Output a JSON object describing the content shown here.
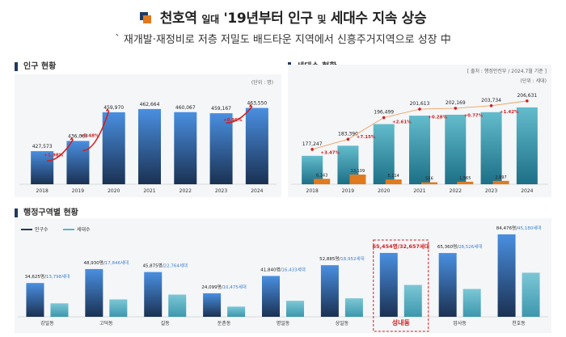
{
  "header": {
    "title_main": "천호역",
    "title_small1": "일대",
    "title_mid": "'19년부터 인구",
    "title_small2": "및",
    "title_end": "세대수 지속 상승",
    "subtitle": "` 재개발·재정비로 저층 저밀도 배드타운 지역에서 신흥주거지역으로 성장 中"
  },
  "colors": {
    "navy": "#1f3a5f",
    "blue": "#3d7fd0",
    "teal": "#5fb3c8",
    "orange": "#e07a1f",
    "red": "#d21f1f"
  },
  "chart_data": [
    {
      "id": "population",
      "type": "bar",
      "title": "인구 현황",
      "unit_note": "(단위 : 명)",
      "categories": [
        "2018",
        "2019",
        "2020",
        "2021",
        "2022",
        "2023",
        "2024"
      ],
      "values": [
        427573,
        436067,
        459970,
        462664,
        460067,
        459167,
        463550
      ],
      "value_labels": [
        "427,573",
        "436,067",
        "459,970",
        "462,664",
        "460,067",
        "459,167",
        "463,550"
      ],
      "annotations": [
        {
          "after_index": 0,
          "label": "+1.98%"
        },
        {
          "after_index": 1,
          "label": "+5.48%"
        },
        {
          "after_index": 5,
          "label": "+0.96%"
        }
      ],
      "ylim": [
        400000,
        470000
      ]
    },
    {
      "id": "households",
      "type": "bar",
      "title": "세대수 현황",
      "source_note": "[ 출처 : 행정안전부 / 2024.7월 기준 ]",
      "unit_note": "(단위 : 세대)",
      "categories": [
        "2018",
        "2019",
        "2020",
        "2021",
        "2022",
        "2023",
        "2024"
      ],
      "series": [
        {
          "values": [
            177247,
            183390,
            196499,
            201613,
            202169,
            203734,
            206631
          ],
          "labels": [
            "177,247",
            "183,390",
            "196,499",
            "201,613",
            "202,169",
            "203,734",
            "206,631"
          ]
        },
        {
          "values": [
            6143,
            13109,
            5114,
            556,
            1565,
            2897,
            null
          ],
          "labels": [
            "6,143",
            "13,109",
            "5,114",
            "556",
            "1,565",
            "2,897",
            ""
          ]
        }
      ],
      "growth_labels": [
        "+3.47%",
        "+7.15%",
        "+2.61%",
        "+0.28%",
        "+0.77%",
        "+1.42%"
      ]
    },
    {
      "id": "districts",
      "type": "bar",
      "title": "행정구역별 현황",
      "legend": [
        "인구수",
        "세대수"
      ],
      "categories": [
        "강일동",
        "고덕동",
        "길동",
        "둔촌동",
        "명일동",
        "상일동",
        "성내동",
        "암사동",
        "천호동"
      ],
      "series": [
        {
          "name": "인구수",
          "values": [
            34625,
            48930,
            45875,
            24099,
            41840,
            52885,
            65454,
            65360,
            84476
          ]
        },
        {
          "name": "세대수",
          "values": [
            13798,
            17846,
            22764,
            10475,
            16433,
            18952,
            32657,
            28526,
            45180
          ]
        }
      ],
      "labels_pop": [
        "34,625명",
        "48,930명",
        "45,875명",
        "24,099명",
        "41,840명",
        "52,885명",
        "65,454명",
        "65,360명",
        "84,476명"
      ],
      "labels_hh": [
        "13,798세대",
        "17,846세대",
        "22,764세대",
        "10,475세대",
        "16,433세대",
        "18,952세대",
        "32,657세대",
        "28,526세대",
        "45,180세대"
      ],
      "highlight": "성내동"
    }
  ]
}
